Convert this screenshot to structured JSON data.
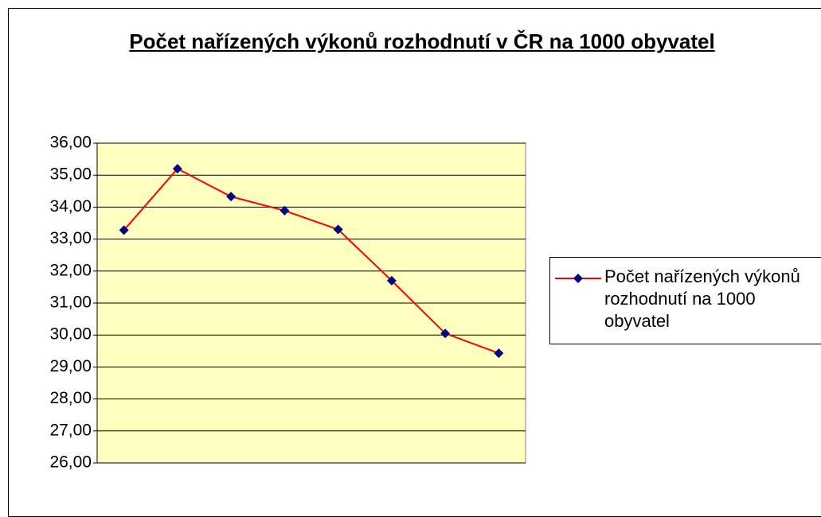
{
  "chart_data": {
    "type": "line",
    "title": "Počet nařízených výkonů rozhodnutí v ČR na 1000 obyvatel ",
    "categories": [
      null,
      null,
      null,
      null,
      null,
      null,
      null,
      null
    ],
    "series": [
      {
        "name": "Počet nařízených výkonů rozhodnutí na 1000 obyvatel",
        "color": "#ff0000",
        "marker_color": "#000080",
        "values": [
          33.28,
          35.2,
          34.33,
          33.89,
          33.3,
          31.7,
          30.05,
          29.43
        ]
      }
    ],
    "ylim": [
      26,
      36
    ],
    "yticks": [
      {
        "value": 26,
        "label": "26,00"
      },
      {
        "value": 27,
        "label": "27,00"
      },
      {
        "value": 28,
        "label": "28,00"
      },
      {
        "value": 29,
        "label": "29,00"
      },
      {
        "value": 30,
        "label": "30,00"
      },
      {
        "value": 31,
        "label": "31,00"
      },
      {
        "value": 32,
        "label": "32,00"
      },
      {
        "value": 33,
        "label": "33,00"
      },
      {
        "value": 34,
        "label": "34,00"
      },
      {
        "value": 35,
        "label": "35,00"
      },
      {
        "value": 36,
        "label": "36,00"
      }
    ],
    "grid": true,
    "legend": "right",
    "plot_background": "#ffffc0"
  }
}
